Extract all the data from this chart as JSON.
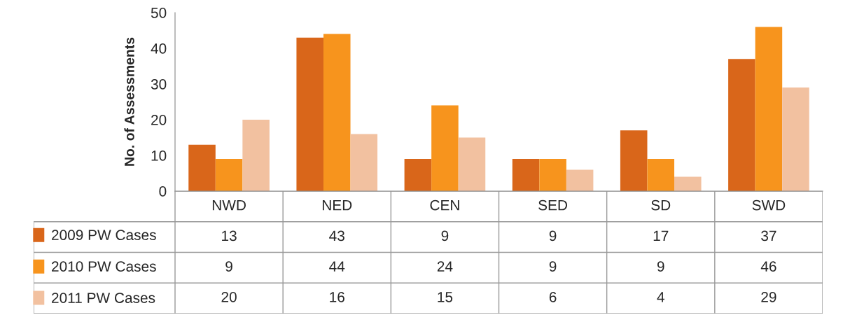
{
  "chart_data": {
    "type": "bar",
    "ylabel": "No. of Assessments",
    "categories": [
      "NWD",
      "NED",
      "CEN",
      "SED",
      "SD",
      "SWD"
    ],
    "series": [
      {
        "name": "2009 PW Cases",
        "color": "#d9661a",
        "values": [
          13,
          43,
          9,
          9,
          17,
          37
        ]
      },
      {
        "name": "2010 PW Cases",
        "color": "#f7941d",
        "values": [
          9,
          44,
          24,
          9,
          9,
          46
        ]
      },
      {
        "name": "2011 PW Cases",
        "color": "#f2c1a0",
        "values": [
          20,
          16,
          15,
          6,
          4,
          29
        ]
      }
    ],
    "ylim": [
      0,
      50
    ],
    "yticks": [
      0,
      10,
      20,
      30,
      40,
      50
    ],
    "grid": false,
    "legend": "bottom left",
    "data_labels": true
  }
}
